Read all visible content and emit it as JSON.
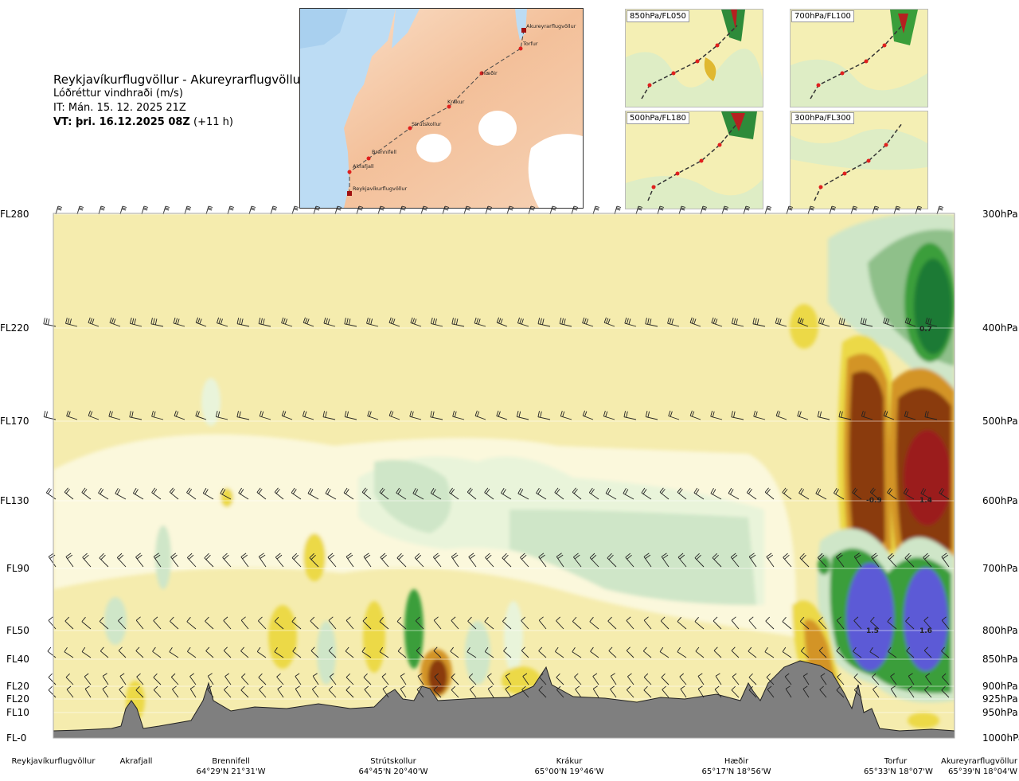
{
  "header": {
    "route": "Reykjavíkurflugvöllur - Akureyrarflugvöllur",
    "variable": "Lóðréttur vindhraði (m/s)",
    "issue_time": "IT: Mán. 15. 12. 2025 21Z",
    "valid_time_bold": "VT: þri. 16.12.2025 08Z",
    "valid_offset": "(+11 h)"
  },
  "map": {
    "waypoints": [
      "Reykjavíkurflugvöllur",
      "Akrafjall",
      "Brennifell",
      "Strútskollur",
      "Krákur",
      "Hæðir",
      "Torfur",
      "Akureyrarflugvöllur"
    ]
  },
  "thumbnails": [
    {
      "label": "850hPa/FL050"
    },
    {
      "label": "700hPa/FL100"
    },
    {
      "label": "500hPa/FL180"
    },
    {
      "label": "300hPa/FL300"
    }
  ],
  "left_axis": [
    "FL280",
    "FL220",
    "FL170",
    "FL130",
    "FL90",
    "FL50",
    "FL40",
    "FL20",
    "FL20",
    "FL10",
    "FL-0"
  ],
  "right_axis": [
    "300hPa",
    "400hPa",
    "500hPa",
    "600hPa",
    "700hPa",
    "800hPa",
    "850hPa",
    "900hPa",
    "925hPa",
    "950hPa",
    "1000hPa"
  ],
  "bottom_locations": [
    {
      "name": "Reykjavíkurflugvöllur",
      "coord": ""
    },
    {
      "name": "Akrafjall",
      "coord": ""
    },
    {
      "name": "Brennifell",
      "coord": "64°29'N 21°31'W"
    },
    {
      "name": "Strútskollur",
      "coord": "64°45'N 20°40'W"
    },
    {
      "name": "Krákur",
      "coord": "65°00'N 19°46'W"
    },
    {
      "name": "Hæðir",
      "coord": "65°17'N 18°56'W"
    },
    {
      "name": "Torfur",
      "coord": "65°33'N 18°07'W"
    },
    {
      "name": "Akureyrarflugvöllur",
      "coord": "65°39'N 18°04'W"
    }
  ],
  "chart_data": {
    "type": "heatmap",
    "title": "Lóðréttur vindhraði (m/s)",
    "y_levels_hPa": [
      300,
      400,
      500,
      600,
      700,
      800,
      850,
      900,
      925,
      950,
      1000
    ],
    "y_levels_FL": [
      "FL280",
      "FL220",
      "FL170",
      "FL130",
      "FL90",
      "FL50",
      "FL40",
      "FL20",
      "FL20",
      "FL10",
      "FL-0"
    ],
    "x_locations": [
      "Reykjavíkurflugvöllur",
      "Akrafjall",
      "Brennifell",
      "Strútskollur",
      "Krákur",
      "Hæðir",
      "Torfur",
      "Akureyrarflugvöllur"
    ],
    "annotations": [
      {
        "label": "0.7",
        "x": "Akureyrarflugvöllur",
        "level_hPa": 400
      },
      {
        "label": "-0.9",
        "x": "Torfur",
        "level_hPa": 600
      },
      {
        "label": "1.4",
        "x": "Akureyrarflugvöllur",
        "level_hPa": 600
      },
      {
        "label": "1.5",
        "x": "Torfur",
        "level_hPa": 800
      },
      {
        "label": "1.6",
        "x": "Akureyrarflugvöllur",
        "level_hPa": 800
      }
    ],
    "colors": {
      "background": "#f5ecae",
      "light_cream": "#fbf8dc",
      "pale_green": "#e9f4da",
      "light_green": "#cfe6c8",
      "mid_green": "#8fc08a",
      "green": "#3a9e3a",
      "dark_green": "#1f7a34",
      "yellow": "#ecd947",
      "orange": "#d39425",
      "brown": "#8a3a10",
      "dark_red": "#9b1b1b",
      "blue": "#5c5ad6",
      "terrain": "#7f7f7f"
    },
    "grid": true
  }
}
